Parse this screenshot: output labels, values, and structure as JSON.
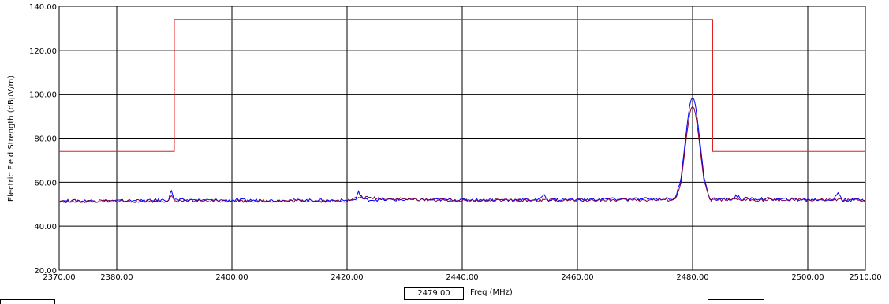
{
  "chart_data": {
    "type": "line",
    "title": "",
    "ylabel": "Electric Field Strength (dBµV/m)",
    "xlabel_unit": "Freq (MHz)",
    "cursor_readout": "2479.00",
    "xlim": [
      2370,
      2510
    ],
    "ylim": [
      20,
      140
    ],
    "x_ticks": [
      "2370.00",
      "2380.00",
      "2400.00",
      "2420.00",
      "2440.00",
      "2460.00",
      "2480.00",
      "2500.00",
      "2510.00"
    ],
    "x_tick_values": [
      2370,
      2380,
      2400,
      2420,
      2440,
      2460,
      2480,
      2500,
      2510
    ],
    "y_ticks": [
      "20.00",
      "40.00",
      "60.00",
      "80.00",
      "100.00",
      "120.00",
      "140.00"
    ],
    "y_tick_values": [
      20,
      40,
      60,
      80,
      100,
      120,
      140
    ],
    "grid_x": [
      2380,
      2400,
      2420,
      2440,
      2460,
      2480,
      2500
    ],
    "grid_y": [
      40,
      60,
      80,
      100,
      120
    ],
    "grid": true,
    "series": [
      {
        "role": "limit",
        "color": "#e02020",
        "x": [
          2370,
          2390,
          2390,
          2483.5,
          2483.5,
          2510
        ],
        "y": [
          74,
          74,
          134,
          134,
          74,
          74
        ]
      },
      {
        "role": "peak",
        "color": "#0000ff",
        "x": [
          2370,
          2385,
          2389,
          2389.5,
          2390,
          2391,
          2420,
          2421.5,
          2422,
          2423,
          2440,
          2453.5,
          2454,
          2455,
          2477,
          2478,
          2479,
          2479.6,
          2480,
          2480.4,
          2481,
          2482,
          2483,
          2487,
          2487.5,
          2488.5,
          2504.5,
          2505.3,
          2506,
          2510
        ],
        "y": [
          51.5,
          51.5,
          52,
          56.5,
          52,
          51.8,
          51.7,
          52,
          55.5,
          52,
          52,
          52,
          54.5,
          52,
          52.5,
          62,
          85,
          97,
          98.5,
          97,
          85,
          62,
          52.5,
          52,
          54,
          52.5,
          52,
          55.5,
          52,
          52
        ]
      },
      {
        "role": "average",
        "color": "#800040",
        "x": [
          2370,
          2389,
          2389.5,
          2390,
          2420,
          2422,
          2440,
          2477,
          2478,
          2479,
          2479.6,
          2480,
          2480.4,
          2481,
          2482,
          2483,
          2510
        ],
        "y": [
          51.2,
          51.5,
          53.5,
          51.5,
          51.5,
          53,
          51.6,
          52,
          60,
          82,
          93,
          94.5,
          93,
          82,
          60,
          52,
          51.8
        ]
      }
    ]
  }
}
